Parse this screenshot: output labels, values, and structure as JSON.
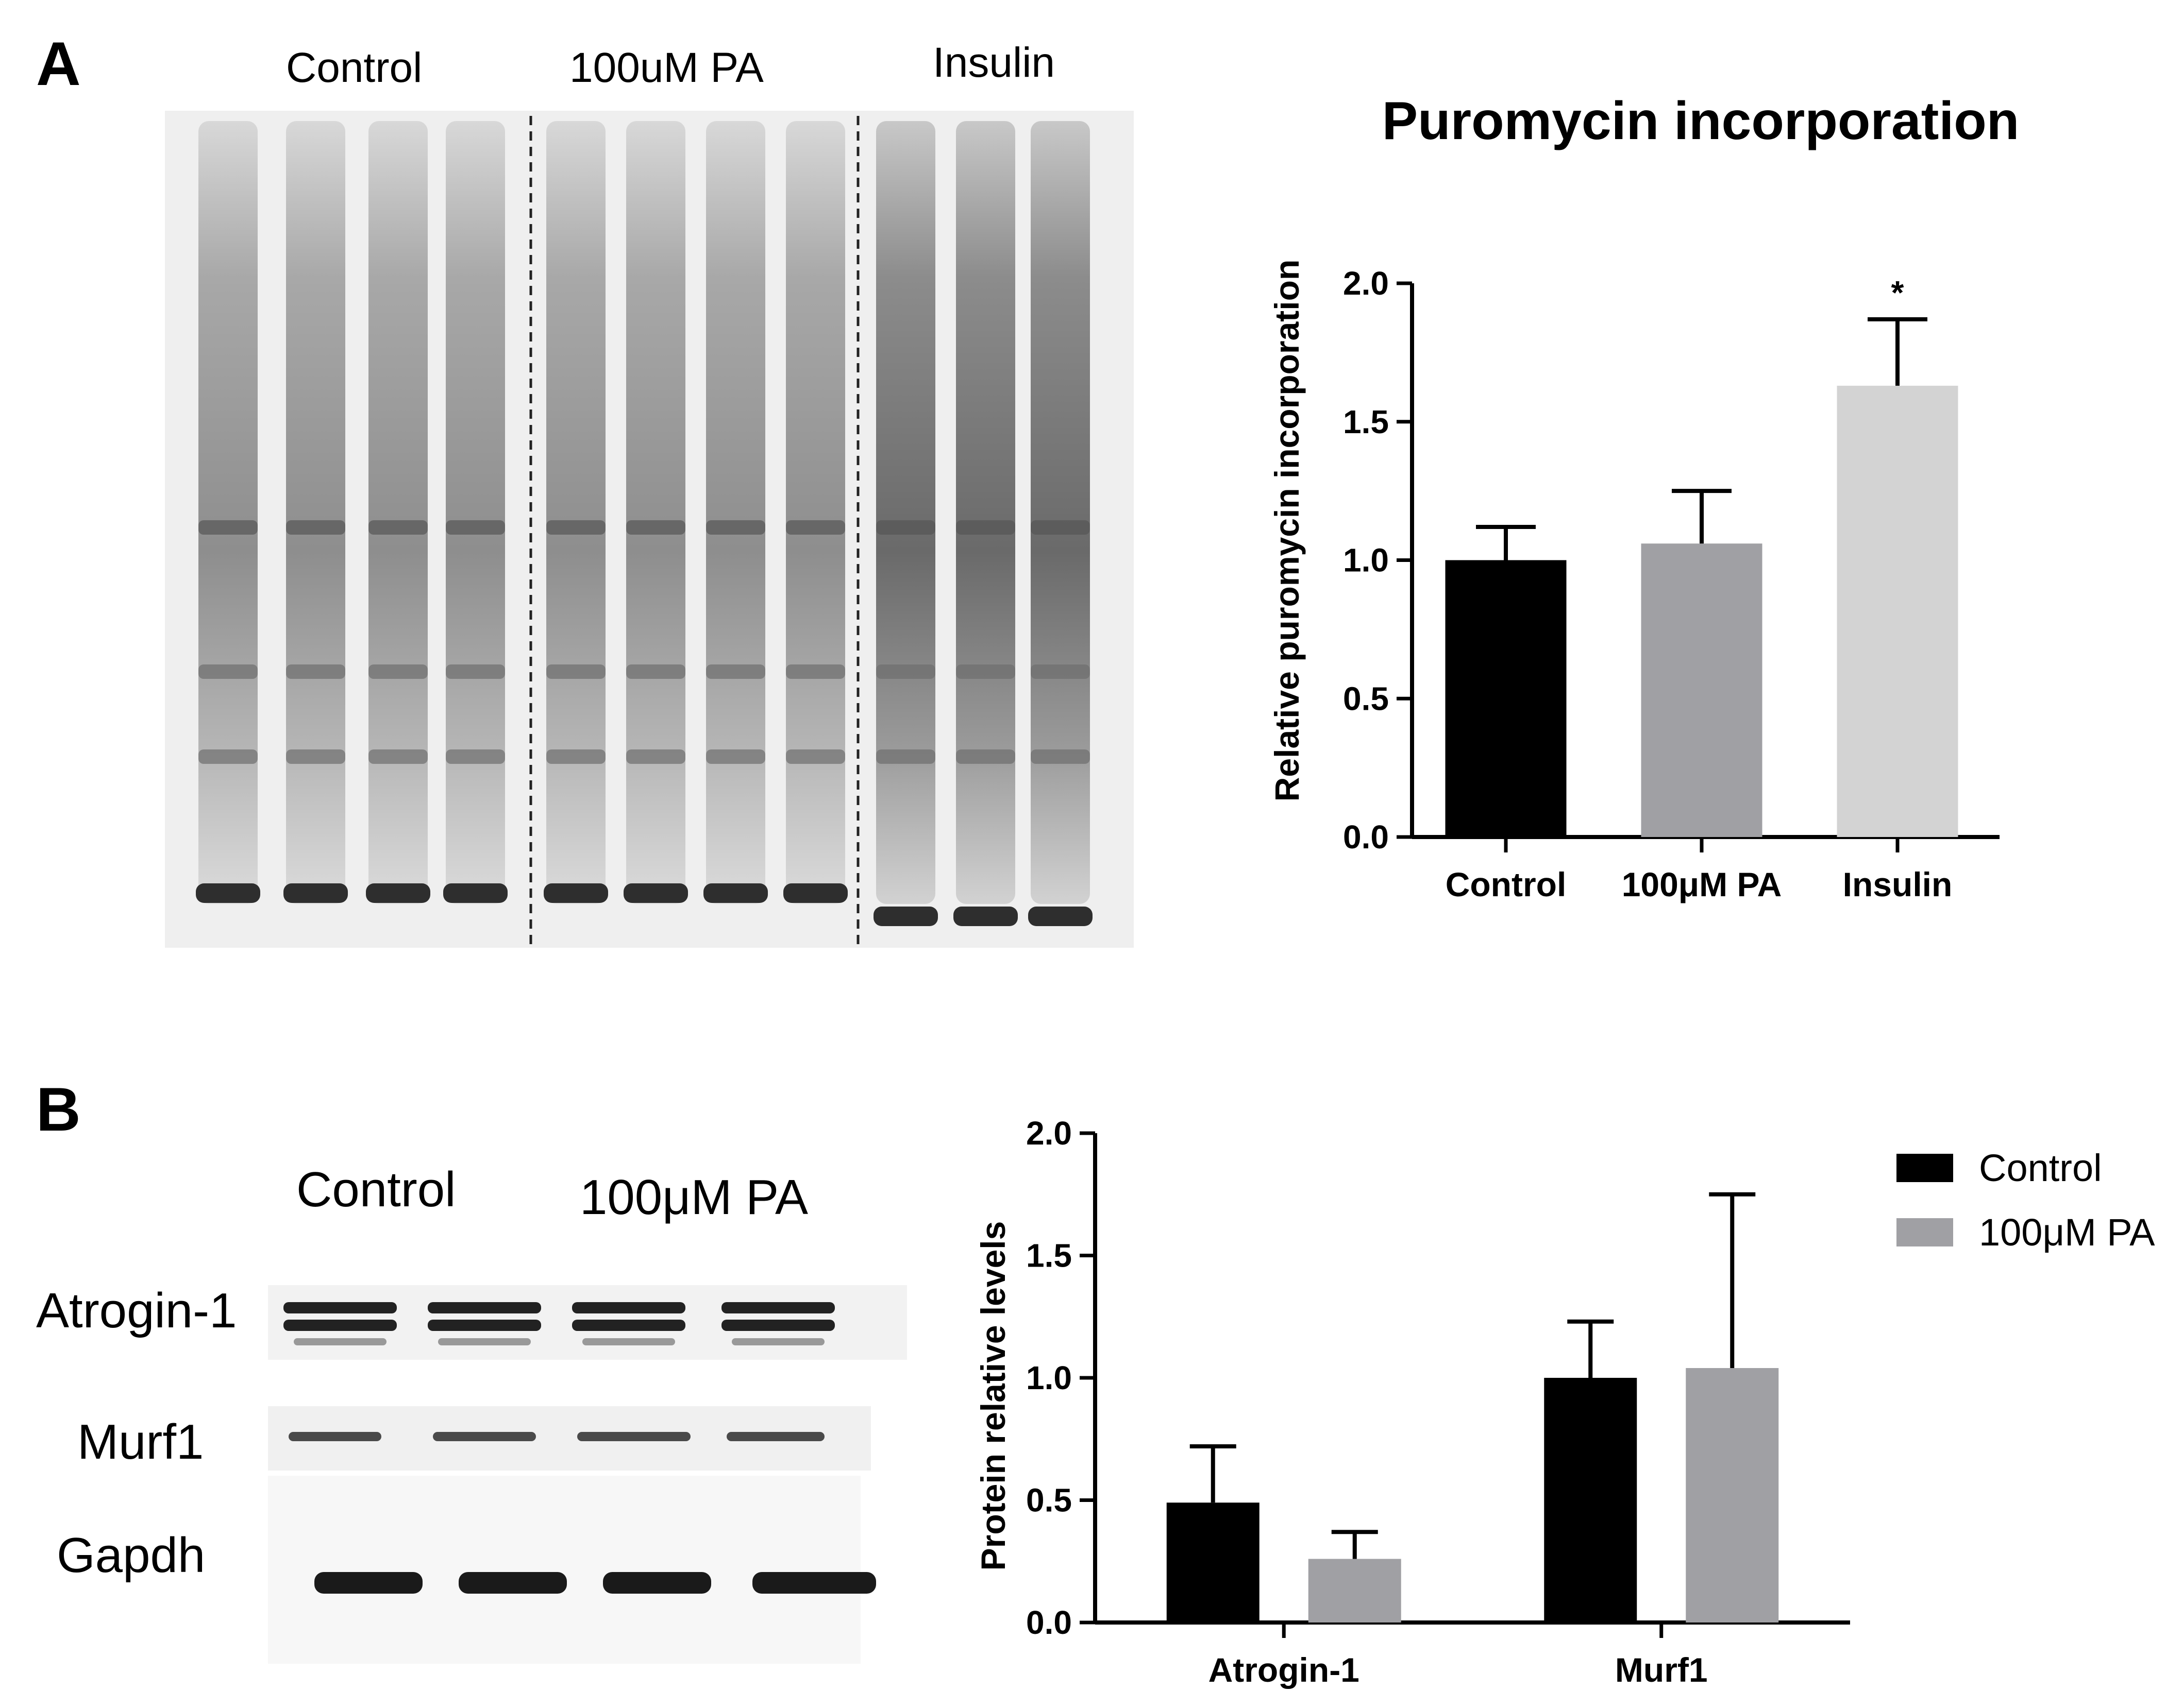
{
  "panels": {
    "a": {
      "letter": "A"
    },
    "b": {
      "letter": "B"
    }
  },
  "blot_a": {
    "lane_groups": [
      "Control",
      "100uM PA",
      "Insulin"
    ]
  },
  "blot_b": {
    "lane_groups": [
      "Control",
      "100μM PA"
    ],
    "row_labels": [
      "Atrogin-1",
      "Murf1",
      "Gapdh"
    ]
  },
  "colors": {
    "control": "#000000",
    "pa": "#a0a0a4",
    "insulin": "#d3d3d3"
  },
  "chart_data": [
    {
      "id": "puromycin",
      "type": "bar",
      "title": "Puromycin incorporation",
      "xlabel": "",
      "ylabel": "Relative puromycin incorporation",
      "categories": [
        "Control",
        "100μM PA",
        "Insulin"
      ],
      "values": [
        1.0,
        1.06,
        1.63
      ],
      "errors": [
        0.12,
        0.19,
        0.24
      ],
      "significance": [
        "",
        "",
        "*"
      ],
      "colors": [
        "#000000",
        "#a0a0a4",
        "#d3d3d3"
      ],
      "ylim": [
        0,
        2.0
      ],
      "yticks": [
        "0.0",
        "0.5",
        "1.0",
        "1.5",
        "2.0"
      ],
      "grid": false
    },
    {
      "id": "protein_levels",
      "type": "bar",
      "title": "",
      "xlabel": "",
      "ylabel": "Protein relative levels",
      "categories": [
        "Atrogin-1",
        "Murf1"
      ],
      "series": [
        {
          "name": "Control",
          "values": [
            0.49,
            1.0
          ],
          "errors": [
            0.23,
            0.23
          ],
          "color": "#000000"
        },
        {
          "name": "100μM PA",
          "values": [
            0.26,
            1.04
          ],
          "errors": [
            0.11,
            0.71
          ],
          "color": "#a0a0a4"
        }
      ],
      "ylim": [
        0,
        2.0
      ],
      "yticks": [
        "0.0",
        "0.5",
        "1.0",
        "1.5",
        "2.0"
      ],
      "legend_position": "top-right",
      "grid": false
    }
  ]
}
